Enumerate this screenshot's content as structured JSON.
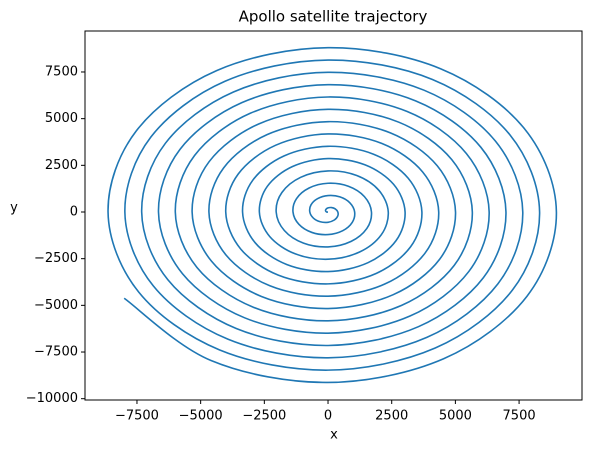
{
  "chart_data": {
    "type": "line",
    "title": "Apollo satellite trajectory",
    "xlabel": "x",
    "ylabel": "y",
    "x": [
      0,
      -55,
      -95,
      -83,
      0,
      138,
      286,
      385,
      381,
      248,
      0,
      -303,
      -572,
      -715,
      -667,
      -413,
      0,
      468,
      857,
      1045,
      953,
      578,
      0,
      -633,
      -1143,
      -1375,
      -1238,
      -743,
      0,
      798,
      1429,
      1705,
      1524,
      908,
      0,
      -963,
      -1715,
      -2035,
      -1810,
      -1073,
      0,
      1128,
      2000,
      2365,
      2096,
      1238,
      0,
      -1293,
      -2286,
      -2695,
      -2382,
      -1403,
      0,
      1458,
      2572,
      3025,
      2667,
      1568,
      0,
      -1623,
      -2858,
      -3355,
      -2953,
      -1733,
      0,
      1788,
      3144,
      3685,
      3239,
      1898,
      0,
      -1953,
      -3429,
      -4015,
      -3525,
      -2063,
      0,
      2118,
      3715,
      4345,
      3810,
      2228,
      0,
      -2283,
      -4001,
      -4675,
      -4096,
      -2393,
      0,
      2448,
      4287,
      5005,
      4382,
      2558,
      0,
      -2613,
      -4572,
      -5335,
      -4668,
      -2723,
      0,
      2778,
      4858,
      5665,
      4954,
      2888,
      0,
      -2943,
      -5144,
      -5995,
      -5239,
      -3053,
      0,
      3108,
      5430,
      6325,
      5525,
      3218,
      0,
      -3273,
      -5716,
      -6655,
      -5811,
      -3383,
      0,
      3438,
      6001,
      6985,
      6097,
      3548,
      0,
      -3603,
      -6287,
      -7315,
      -6382,
      -3713,
      0,
      3768,
      6573,
      7645,
      6668,
      3878,
      0,
      -3933,
      -6859,
      -7975,
      -6954,
      -4043,
      0,
      4098,
      7145,
      8305,
      7240,
      4208,
      0,
      -4263,
      -7430,
      -8635,
      -7526,
      -4373,
      0,
      4428,
      7716,
      8965,
      7811,
      4538,
      0,
      -4593,
      -8002
    ],
    "series": [
      {
        "color": "#1f77b4",
        "values": [
          0,
          0,
          55,
          143,
          220,
          238,
          165,
          0,
          -220,
          -429,
          -550,
          -524,
          -330,
          0,
          385,
          714,
          880,
          810,
          495,
          0,
          -550,
          -1000,
          -1210,
          -1095,
          -660,
          0,
          715,
          1286,
          1540,
          1381,
          825,
          0,
          -880,
          -1572,
          -1870,
          -1667,
          -990,
          0,
          1045,
          1858,
          2200,
          1953,
          1155,
          0,
          -1210,
          -2143,
          -2530,
          -2239,
          -1320,
          0,
          1375,
          2429,
          2860,
          2524,
          1485,
          0,
          -1540,
          -2715,
          -3190,
          -2810,
          -1650,
          0,
          1705,
          3001,
          3520,
          3096,
          1815,
          0,
          -1870,
          -3286,
          -3850,
          -3382,
          -1980,
          0,
          2035,
          3572,
          4180,
          3668,
          2145,
          0,
          -2200,
          -3858,
          -4510,
          -3953,
          -2310,
          0,
          2365,
          4144,
          4840,
          4239,
          2475,
          0,
          -2530,
          -4430,
          -5170,
          -4525,
          -2640,
          0,
          2695,
          4715,
          5500,
          4811,
          2805,
          0,
          -2860,
          -5001,
          -5830,
          -5096,
          -2970,
          0,
          3025,
          5287,
          6160,
          5382,
          3135,
          0,
          -3190,
          -5573,
          -6490,
          -5668,
          -3300,
          0,
          3355,
          5858,
          6820,
          5954,
          3465,
          0,
          -3520,
          -6144,
          -7150,
          -6240,
          -3630,
          0,
          3685,
          6430,
          7480,
          6525,
          3795,
          0,
          -3850,
          -6716,
          -7810,
          -6811,
          -3960,
          0,
          4015,
          7002,
          8140,
          7097,
          4125,
          0,
          -4180,
          -7287,
          -8470,
          -7383,
          -4290,
          0,
          4345,
          7573,
          8800,
          7668,
          4455,
          0,
          -4510,
          -7859,
          -9130,
          -7954,
          -4620
        ]
      }
    ],
    "xlim": [
      -9540,
      9970
    ],
    "ylim": [
      -10070,
      9695
    ],
    "xticks": [
      {
        "value": -7500,
        "label": "−7500"
      },
      {
        "value": -5000,
        "label": "−5000"
      },
      {
        "value": -2500,
        "label": "−2500"
      },
      0,
      2500,
      5000,
      7500
    ],
    "yticks": [
      {
        "value": -10000,
        "label": "−10000"
      },
      {
        "value": -7500,
        "label": "−7500"
      },
      {
        "value": -5000,
        "label": "−5000"
      },
      {
        "value": -2500,
        "label": "−2500"
      },
      0,
      2500,
      5000,
      7500
    ],
    "grid": false
  }
}
